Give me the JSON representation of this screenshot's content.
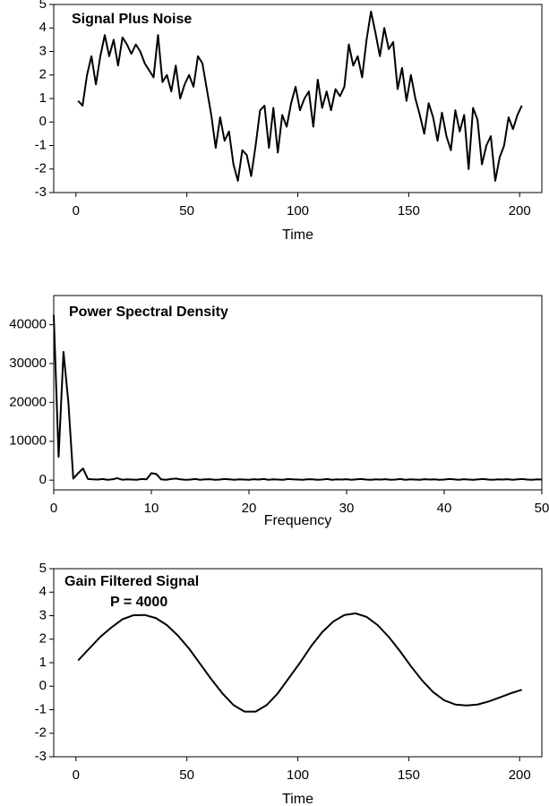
{
  "chart_data": [
    {
      "type": "line",
      "title": "Signal Plus Noise",
      "xlabel": "Time",
      "x": [
        1,
        3,
        5,
        7,
        9,
        11,
        13,
        15,
        17,
        19,
        21,
        23,
        25,
        27,
        29,
        31,
        33,
        35,
        37,
        39,
        41,
        43,
        45,
        47,
        49,
        51,
        53,
        55,
        57,
        59,
        61,
        63,
        65,
        67,
        69,
        71,
        73,
        75,
        77,
        79,
        81,
        83,
        85,
        87,
        89,
        91,
        93,
        95,
        97,
        99,
        101,
        103,
        105,
        107,
        109,
        111,
        113,
        115,
        117,
        119,
        121,
        123,
        125,
        127,
        129,
        131,
        133,
        135,
        137,
        139,
        141,
        143,
        145,
        147,
        149,
        151,
        153,
        155,
        157,
        159,
        161,
        163,
        165,
        167,
        169,
        171,
        173,
        175,
        177,
        179,
        181,
        183,
        185,
        187,
        189,
        191,
        193,
        195,
        197,
        199,
        201
      ],
      "values": [
        0.9,
        0.7,
        2.0,
        2.8,
        1.6,
        2.8,
        3.7,
        2.8,
        3.5,
        2.4,
        3.6,
        3.3,
        2.9,
        3.3,
        3.0,
        2.5,
        2.2,
        1.9,
        3.7,
        1.7,
        2.0,
        1.3,
        2.4,
        1.0,
        1.6,
        2.0,
        1.5,
        2.8,
        2.5,
        1.4,
        0.3,
        -1.1,
        0.2,
        -0.8,
        -0.4,
        -1.8,
        -2.5,
        -1.2,
        -1.4,
        -2.3,
        -1.0,
        0.5,
        0.7,
        -1.1,
        0.6,
        -1.3,
        0.3,
        -0.2,
        0.8,
        1.5,
        0.5,
        1.0,
        1.3,
        -0.2,
        1.8,
        0.6,
        1.3,
        0.5,
        1.4,
        1.1,
        1.5,
        3.3,
        2.4,
        2.8,
        1.9,
        3.5,
        4.7,
        3.8,
        2.8,
        4.0,
        3.1,
        3.4,
        1.4,
        2.3,
        0.9,
        2.0,
        1.0,
        0.3,
        -0.5,
        0.8,
        0.2,
        -0.8,
        0.4,
        -0.6,
        -1.2,
        0.5,
        -0.4,
        0.3,
        -2.0,
        0.6,
        0.1,
        -1.8,
        -1.0,
        -0.6,
        -2.5,
        -1.5,
        -1.0,
        0.2,
        -0.3,
        0.3,
        0.7
      ],
      "color": "#000000",
      "xlim": [
        -10,
        210
      ],
      "ylim": [
        -3,
        5
      ],
      "xticks": [
        0,
        50,
        100,
        150,
        200
      ],
      "yticks": [
        -3,
        -2,
        -1,
        0,
        1,
        2,
        3,
        4,
        5
      ]
    },
    {
      "type": "line",
      "title": "Power Spectral Density",
      "xlabel": "Frequency",
      "x": [
        0,
        0.5,
        1,
        1.5,
        2,
        2.5,
        3,
        3.5,
        4,
        4.5,
        5,
        5.5,
        6,
        6.5,
        7,
        7.5,
        8,
        8.5,
        9,
        9.5,
        10,
        10.5,
        11,
        11.5,
        12,
        12.5,
        13,
        13.5,
        14,
        14.5,
        15,
        15.5,
        16,
        16.5,
        17,
        17.5,
        18,
        18.5,
        19,
        19.5,
        20,
        20.5,
        21,
        21.5,
        22,
        22.5,
        23,
        23.5,
        24,
        24.5,
        25,
        25.5,
        26,
        26.5,
        27,
        27.5,
        28,
        28.5,
        29,
        29.5,
        30,
        30.5,
        31,
        31.5,
        32,
        32.5,
        33,
        33.5,
        34,
        34.5,
        35,
        35.5,
        36,
        36.5,
        37,
        37.5,
        38,
        38.5,
        39,
        39.5,
        40,
        40.5,
        41,
        41.5,
        42,
        42.5,
        43,
        43.5,
        44,
        44.5,
        45,
        45.5,
        46,
        46.5,
        47,
        47.5,
        48,
        48.5,
        49,
        49.5,
        50
      ],
      "values": [
        42500,
        6000,
        33000,
        20000,
        400,
        1800,
        3000,
        300,
        200,
        150,
        300,
        100,
        200,
        500,
        100,
        200,
        150,
        100,
        300,
        200,
        1800,
        1600,
        200,
        100,
        300,
        400,
        200,
        100,
        150,
        300,
        100,
        200,
        250,
        100,
        150,
        300,
        200,
        100,
        200,
        150,
        100,
        250,
        150,
        300,
        100,
        200,
        150,
        100,
        300,
        200,
        150,
        100,
        250,
        200,
        100,
        150,
        300,
        100,
        200,
        150,
        250,
        100,
        200,
        300,
        150,
        100,
        200,
        150,
        250,
        100,
        150,
        300,
        100,
        200,
        150,
        100,
        250,
        150,
        200,
        100,
        150,
        300,
        200,
        100,
        250,
        150,
        100,
        200,
        300,
        150,
        100,
        200,
        150,
        250,
        100,
        200,
        300,
        150,
        100,
        200,
        150
      ],
      "color": "#000000",
      "xlim": [
        0,
        50
      ],
      "ylim": [
        -2500,
        47500
      ],
      "xticks": [
        0,
        10,
        20,
        30,
        40,
        50
      ],
      "yticks": [
        0,
        10000,
        20000,
        30000,
        40000
      ]
    },
    {
      "type": "line",
      "title": "Gain Filtered Signal",
      "annotation": "P = 4000",
      "xlabel": "Time",
      "x": [
        1,
        6,
        11,
        16,
        21,
        26,
        31,
        36,
        41,
        46,
        51,
        56,
        61,
        66,
        71,
        76,
        81,
        86,
        91,
        96,
        101,
        106,
        111,
        116,
        121,
        126,
        131,
        136,
        141,
        146,
        151,
        156,
        161,
        166,
        171,
        176,
        181,
        186,
        191,
        196,
        201
      ],
      "values": [
        1.1,
        1.6,
        2.1,
        2.5,
        2.85,
        3.02,
        3.03,
        2.9,
        2.6,
        2.15,
        1.6,
        0.95,
        0.3,
        -0.3,
        -0.8,
        -1.08,
        -1.08,
        -0.8,
        -0.3,
        0.35,
        1.0,
        1.7,
        2.3,
        2.75,
        3.03,
        3.1,
        2.95,
        2.6,
        2.1,
        1.5,
        0.85,
        0.25,
        -0.25,
        -0.6,
        -0.78,
        -0.82,
        -0.78,
        -0.65,
        -0.48,
        -0.3,
        -0.15
      ],
      "color": "#000000",
      "xlim": [
        -10,
        210
      ],
      "ylim": [
        -3,
        5
      ],
      "xticks": [
        0,
        50,
        100,
        150,
        200
      ],
      "yticks": [
        -3,
        -2,
        -1,
        0,
        1,
        2,
        3,
        4,
        5
      ]
    }
  ]
}
